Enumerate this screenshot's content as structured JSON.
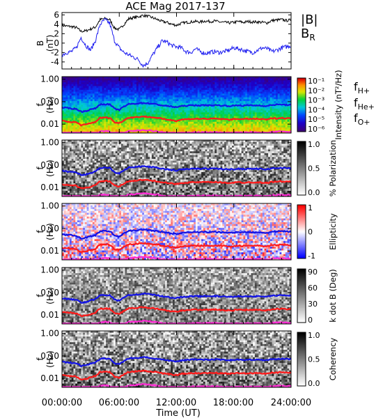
{
  "title": "ACE Mag 2017-137",
  "xlabel": "Time (UT)",
  "x_ticks": [
    "00:00:00",
    "06:00:00",
    "12:00:00",
    "18:00:00",
    "24:00:00"
  ],
  "colors": {
    "B_total": "#000000",
    "B_R": "#1c1cf0",
    "f_H": "#1212e6",
    "f_He": "#ff1a1a",
    "f_O": "#ff2ad4"
  },
  "chart_data": [
    {
      "type": "line",
      "panel": "magnetic-field",
      "ylabel": "B (nT)",
      "ylim": [
        -5.5,
        6.5
      ],
      "y_ticks": [
        6,
        4,
        2,
        0,
        -2,
        -4
      ],
      "xlim_hours": [
        0,
        24
      ],
      "legend": [
        "|B|",
        "BR"
      ],
      "series": [
        {
          "name": "|B|",
          "color": "#000000",
          "x": [
            0,
            0.5,
            1,
            1.5,
            2,
            2.5,
            3,
            3.5,
            4,
            4.5,
            5,
            5.5,
            6,
            6.5,
            7,
            7.5,
            8,
            8.5,
            9,
            9.5,
            10,
            10.5,
            11,
            11.5,
            12,
            12.5,
            13,
            13.5,
            14,
            14.5,
            15,
            15.5,
            16,
            16.5,
            17,
            17.5,
            18,
            18.5,
            19,
            19.5,
            20,
            20.5,
            21,
            21.5,
            22,
            22.5,
            23,
            23.5,
            24
          ],
          "values": [
            3.8,
            3.6,
            3.5,
            3.3,
            2.5,
            2.6,
            3.0,
            3.4,
            5.0,
            5.2,
            5.0,
            3.2,
            2.9,
            4.0,
            5.2,
            5.4,
            5.6,
            5.9,
            5.7,
            5.4,
            5.0,
            4.6,
            4.4,
            4.0,
            3.8,
            4.2,
            4.4,
            4.5,
            4.6,
            4.5,
            4.7,
            4.6,
            4.7,
            4.5,
            4.4,
            4.3,
            4.4,
            4.6,
            4.4,
            4.6,
            4.5,
            4.5,
            4.4,
            4.3,
            4.8,
            4.9,
            5.0,
            4.8,
            4.9
          ]
        },
        {
          "name": "BR",
          "color": "#1c1cf0",
          "x": [
            0,
            0.5,
            1,
            1.5,
            2,
            2.5,
            3,
            3.5,
            4,
            4.5,
            5,
            5.5,
            6,
            6.5,
            7,
            7.5,
            8,
            8.5,
            9,
            9.5,
            10,
            10.5,
            11,
            11.5,
            12,
            12.5,
            13,
            13.5,
            14,
            14.5,
            15,
            15.5,
            16,
            16.5,
            17,
            17.5,
            18,
            18.5,
            19,
            19.5,
            20,
            20.5,
            21,
            21.5,
            22,
            22.5,
            23,
            23.5,
            24
          ],
          "values": [
            -2.5,
            -2.0,
            -1.8,
            -1.0,
            1.2,
            -0.5,
            -1.5,
            0.5,
            4.0,
            5.0,
            4.2,
            0.5,
            -1.0,
            -2.0,
            -2.5,
            -3.0,
            -3.5,
            -4.8,
            -4.2,
            -2.5,
            -1.0,
            0.5,
            0.2,
            -0.5,
            -0.8,
            -1.0,
            -1.8,
            -2.0,
            -1.2,
            -1.8,
            -2.2,
            -2.0,
            -1.8,
            -2.0,
            -1.8,
            -1.5,
            -1.0,
            -1.2,
            -1.5,
            -1.8,
            -2.0,
            -1.5,
            -1.0,
            -1.2,
            -1.8,
            -1.5,
            -1.0,
            -0.8,
            -0.5
          ]
        }
      ]
    },
    {
      "type": "heatmap",
      "panel": "intensity",
      "ylabel": "f (Hz)",
      "y_scale": "log",
      "ylim": [
        0.004,
        1.3
      ],
      "y_ticks": [
        "1.00",
        "0.10",
        "0.01"
      ],
      "colorbar": {
        "label": "Intensity (nT²/Hz)",
        "ticks": [
          "10⁻¹",
          "10⁻²",
          "10⁻³",
          "10⁻⁴",
          "10⁻⁵",
          "10⁻⁶"
        ],
        "scale": "rainbow"
      },
      "legend": [
        "fH+",
        "fHe+",
        "fO+"
      ]
    },
    {
      "type": "heatmap",
      "panel": "polarization",
      "ylabel": "f (Hz)",
      "y_scale": "log",
      "y_ticks": [
        "1.00",
        "0.10",
        "0.01"
      ],
      "colorbar": {
        "label": "% Polarization",
        "ticks": [
          "1.0",
          "0.5",
          "0.0"
        ],
        "scale": "grayscale"
      }
    },
    {
      "type": "heatmap",
      "panel": "ellipticity",
      "ylabel": "f (Hz)",
      "y_scale": "log",
      "y_ticks": [
        "1.00",
        "0.10",
        "0.01"
      ],
      "colorbar": {
        "label": "Ellipticity",
        "ticks": [
          "1",
          "0",
          "-1"
        ],
        "scale": "blue-white-red"
      }
    },
    {
      "type": "heatmap",
      "panel": "k-dot-b",
      "ylabel": "f (Hz)",
      "y_scale": "log",
      "y_ticks": [
        "1.00",
        "0.10",
        "0.01"
      ],
      "colorbar": {
        "label": "k dot B (Deg)",
        "ticks": [
          "90",
          "60",
          "30",
          "0"
        ],
        "scale": "grayscale"
      }
    },
    {
      "type": "heatmap",
      "panel": "coherency",
      "ylabel": "f (Hz)",
      "y_scale": "log",
      "y_ticks": [
        "1.00",
        "0.10",
        "0.01"
      ],
      "colorbar": {
        "label": "Coherency",
        "ticks": [
          "1.0",
          "0.5",
          "0.0"
        ],
        "scale": "grayscale"
      }
    }
  ],
  "gyro_lines": {
    "x_hours": [
      0,
      0.5,
      1,
      1.5,
      2,
      2.5,
      3,
      3.5,
      4,
      4.5,
      5,
      5.5,
      6,
      6.5,
      7,
      7.5,
      8,
      8.5,
      9,
      9.5,
      10,
      10.5,
      11,
      11.5,
      12,
      12.5,
      13,
      13.5,
      14,
      14.5,
      15,
      15.5,
      16,
      16.5,
      17,
      17.5,
      18,
      18.5,
      19,
      19.5,
      20,
      20.5,
      21,
      21.5,
      22,
      22.5,
      23,
      23.5,
      24
    ],
    "fH_hz": [
      0.055,
      0.052,
      0.05,
      0.047,
      0.036,
      0.038,
      0.045,
      0.05,
      0.075,
      0.078,
      0.075,
      0.048,
      0.043,
      0.06,
      0.078,
      0.08,
      0.084,
      0.088,
      0.085,
      0.08,
      0.075,
      0.068,
      0.065,
      0.06,
      0.057,
      0.063,
      0.066,
      0.068,
      0.069,
      0.068,
      0.07,
      0.068,
      0.07,
      0.068,
      0.066,
      0.064,
      0.066,
      0.069,
      0.066,
      0.069,
      0.068,
      0.068,
      0.066,
      0.064,
      0.072,
      0.073,
      0.075,
      0.072,
      0.073
    ],
    "fHe_hz": [
      0.014,
      0.013,
      0.0125,
      0.012,
      0.009,
      0.0095,
      0.011,
      0.0125,
      0.019,
      0.0195,
      0.019,
      0.012,
      0.011,
      0.015,
      0.0195,
      0.02,
      0.021,
      0.022,
      0.021,
      0.02,
      0.019,
      0.017,
      0.016,
      0.015,
      0.014,
      0.016,
      0.0165,
      0.017,
      0.0172,
      0.017,
      0.0175,
      0.017,
      0.0175,
      0.017,
      0.0165,
      0.016,
      0.0165,
      0.0172,
      0.0165,
      0.0172,
      0.017,
      0.017,
      0.0165,
      0.016,
      0.018,
      0.0182,
      0.0188,
      0.018,
      0.0182
    ],
    "fO_hz": [
      0.0035,
      0.0033,
      0.0032,
      0.003,
      0.0023,
      0.0024,
      0.0028,
      0.0031,
      0.0047,
      0.0049,
      0.0047,
      0.003,
      0.0027,
      0.0038,
      0.0049,
      0.005,
      0.0052,
      0.0055,
      0.0053,
      0.005,
      0.0047,
      0.0043,
      0.004,
      0.0038,
      0.0036,
      0.004,
      0.0041,
      0.0043,
      0.0043,
      0.0043,
      0.0044,
      0.0043,
      0.0044,
      0.0043,
      0.0041,
      0.004,
      0.0041,
      0.0043,
      0.0041,
      0.0043,
      0.0043,
      0.0043,
      0.0041,
      0.004,
      0.0045,
      0.0046,
      0.0047,
      0.0045,
      0.0046
    ]
  }
}
